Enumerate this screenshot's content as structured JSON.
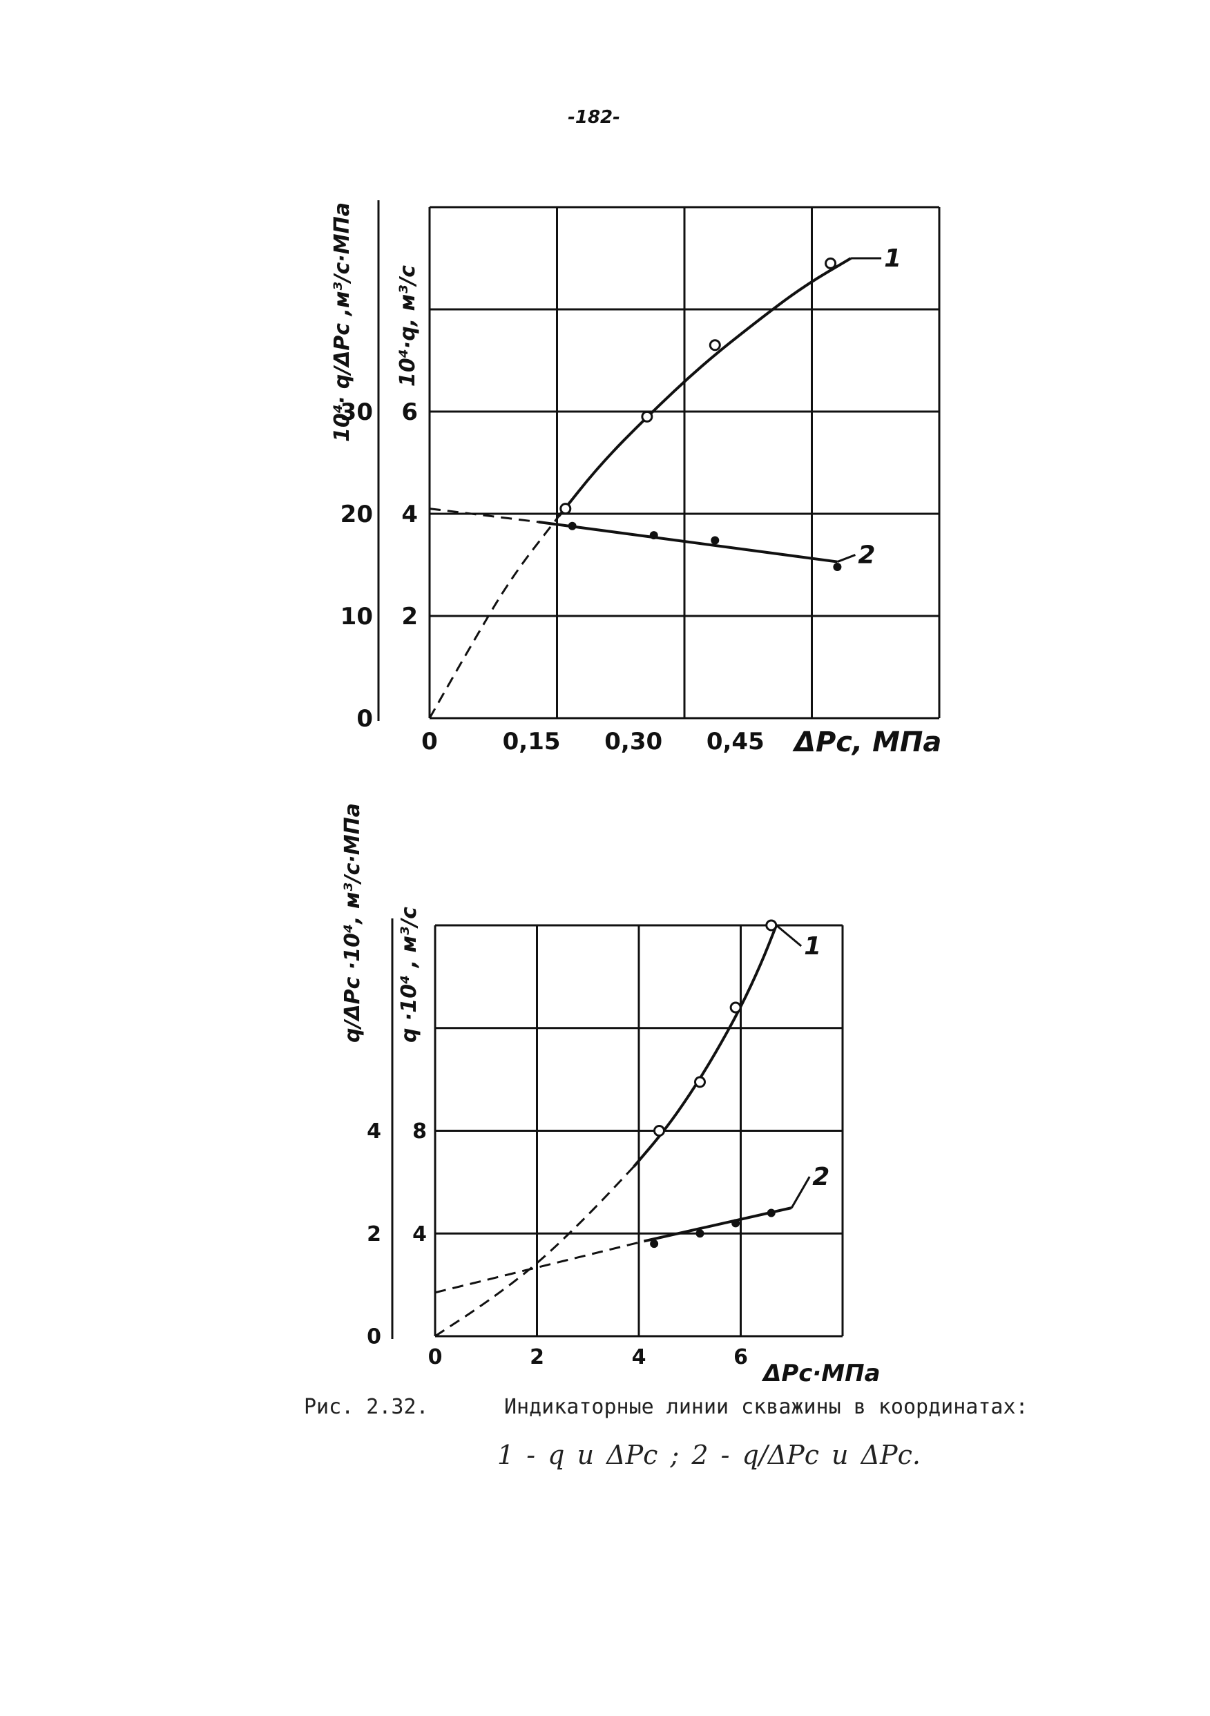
{
  "page_number": "-182-",
  "caption": {
    "label": "Рис. 2.32.",
    "text": "Индикаторные линии скважины в координатах:",
    "legend": "1 - q и ΔPc ;  2 - q/ΔPc  и ΔPc."
  },
  "colors": {
    "ink": "#111111",
    "paper": "#ffffff"
  },
  "chart_data": [
    {
      "type": "line",
      "title": "",
      "xlabel": "ΔPc, МПа",
      "x_ticks": [
        "0",
        "0,15",
        "0,30",
        "0,45"
      ],
      "xlim": [
        0,
        0.75
      ],
      "left_axis": {
        "label": "10⁴· q/ΔPc ,м³/с·МПа",
        "ticks": [
          "0",
          "10",
          "20",
          "30"
        ],
        "ylim": [
          0,
          50
        ]
      },
      "right_axis": {
        "label": "10⁴·q, м³/с",
        "ticks": [
          "2",
          "4",
          "6"
        ],
        "ylim": [
          0,
          10
        ]
      },
      "grid": true,
      "series": [
        {
          "name": "1",
          "axis": "right",
          "points": {
            "x": [
              0.2,
              0.32,
              0.42,
              0.59
            ],
            "y": [
              4.1,
              5.9,
              7.3,
              8.9
            ]
          },
          "curve": {
            "x": [
              0.19,
              0.25,
              0.32,
              0.4,
              0.48,
              0.55,
              0.62
            ],
            "y": [
              3.95,
              4.95,
              5.9,
              6.9,
              7.75,
              8.45,
              9.0
            ]
          },
          "extrapolation": {
            "x": [
              0,
              0.06,
              0.12,
              0.19
            ],
            "y": [
              0,
              1.4,
              2.75,
              3.95
            ]
          }
        },
        {
          "name": "2",
          "axis": "left",
          "points": {
            "x": [
              0.21,
              0.33,
              0.42,
              0.6
            ],
            "y": [
              18.8,
              17.9,
              17.4,
              14.8
            ]
          },
          "curve": {
            "x": [
              0.16,
              0.6
            ],
            "y": [
              19.2,
              15.3
            ]
          },
          "extrapolation": {
            "x": [
              0,
              0.16
            ],
            "y": [
              20.5,
              19.2
            ]
          }
        }
      ]
    },
    {
      "type": "line",
      "title": "",
      "xlabel": "ΔPc·МПа",
      "x_ticks": [
        "0",
        "2",
        "4",
        "6"
      ],
      "xlim": [
        0,
        8
      ],
      "left_axis": {
        "label": "q/ΔPc ·10⁴, м³/с·МПа",
        "ticks": [
          "0",
          "2",
          "4"
        ],
        "ylim": [
          0,
          8
        ]
      },
      "right_axis": {
        "label": "q ·10⁴ , м³/с",
        "ticks": [
          "4",
          "8"
        ],
        "ylim": [
          0,
          16
        ]
      },
      "grid": true,
      "series": [
        {
          "name": "1",
          "axis": "right",
          "points": {
            "x": [
              4.4,
              5.2,
              5.9,
              6.6
            ],
            "y": [
              8.0,
              9.9,
              12.8,
              16.0
            ]
          },
          "curve": {
            "x": [
              3.9,
              4.5,
              5.0,
              5.5,
              6.0,
              6.4,
              6.7
            ],
            "y": [
              6.6,
              8.0,
              9.4,
              11.0,
              12.8,
              14.5,
              16.0
            ]
          },
          "extrapolation": {
            "x": [
              0,
              1.0,
              2.0,
              3.0,
              3.9
            ],
            "y": [
              0,
              1.3,
              2.8,
              4.7,
              6.6
            ]
          }
        },
        {
          "name": "2",
          "axis": "left",
          "points": {
            "x": [
              4.3,
              5.2,
              5.9,
              6.6
            ],
            "y": [
              1.8,
              2.0,
              2.2,
              2.4
            ]
          },
          "curve": {
            "x": [
              4.1,
              7.0
            ],
            "y": [
              1.85,
              2.5
            ]
          },
          "extrapolation": {
            "x": [
              0,
              4.1
            ],
            "y": [
              0.85,
              1.85
            ]
          }
        }
      ]
    }
  ]
}
